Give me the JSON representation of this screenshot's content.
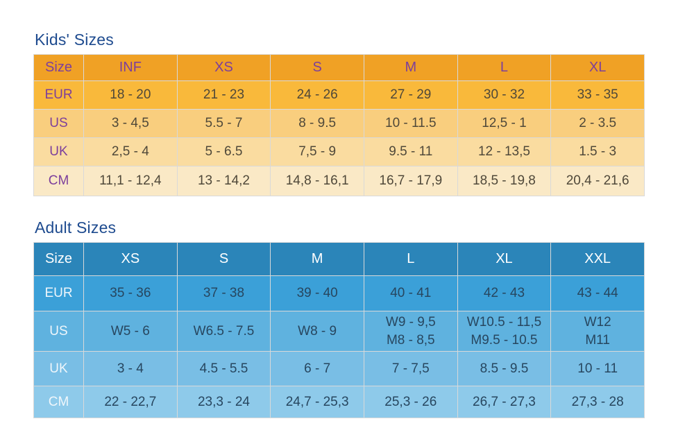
{
  "style": {
    "title_color": "#1e4b8f",
    "grid_line": "#d9d9d9",
    "kids_header_bg": "#f0a125",
    "kids_header_text": "#7c3f9c",
    "kids_label_text": "#7c3f9c",
    "kids_value_text": "#4f4839",
    "kids_row_eur_bg": "#f9b93b",
    "kids_row_us_bg": "#f9ce7e",
    "kids_row_uk_bg": "#fadca0",
    "kids_row_cm_bg": "#fae9c6",
    "adult_header_bg": "#2b85b9",
    "adult_header_text": "#ffffff",
    "adult_label_text": "#eff6fb",
    "adult_value_text": "#27465f",
    "adult_row_eur_bg": "#3ba0d8",
    "adult_row_us_bg": "#5fb2df",
    "adult_row_uk_bg": "#79bee5",
    "adult_row_cm_bg": "#8ecaea"
  },
  "chart_data": [
    {
      "type": "table",
      "title": "Kids' Sizes",
      "columns": [
        "Size",
        "INF",
        "XS",
        "S",
        "M",
        "L",
        "XL"
      ],
      "rows": [
        {
          "label": "EUR",
          "values": [
            "18 - 20",
            "21 - 23",
            "24 - 26",
            "27 - 29",
            "30 - 32",
            "33 - 35"
          ]
        },
        {
          "label": "US",
          "values": [
            "3 - 4,5",
            "5.5 - 7",
            "8 - 9.5",
            "10 - 11.5",
            "12,5 - 1",
            "2 - 3.5"
          ]
        },
        {
          "label": "UK",
          "values": [
            "2,5 - 4",
            "5 - 6.5",
            "7,5 - 9",
            "9.5 - 11",
            "12 - 13,5",
            "1.5 - 3"
          ]
        },
        {
          "label": "CM",
          "values": [
            "11,1 - 12,4",
            "13 - 14,2",
            "14,8 - 16,1",
            "16,7 - 17,9",
            "18,5 - 19,8",
            "20,4 - 21,6"
          ]
        }
      ]
    },
    {
      "type": "table",
      "title": "Adult Sizes",
      "columns": [
        "Size",
        "XS",
        "S",
        "M",
        "L",
        "XL",
        "XXL"
      ],
      "rows": [
        {
          "label": "EUR",
          "values": [
            "35 - 36",
            "37 - 38",
            "39 - 40",
            "40 - 41",
            "42 - 43",
            "43 - 44"
          ]
        },
        {
          "label": "US",
          "values": [
            "W5 - 6",
            "W6.5 - 7.5",
            "W8 - 9",
            "W9 - 9,5\nM8 - 8,5",
            "W10.5 - 11,5\nM9.5 - 10.5",
            "W12\nM11"
          ]
        },
        {
          "label": "UK",
          "values": [
            "3 - 4",
            "4.5 - 5.5",
            "6 - 7",
            "7 - 7,5",
            "8.5 - 9.5",
            "10 - 11"
          ]
        },
        {
          "label": "CM",
          "values": [
            "22 - 22,7",
            "23,3 - 24",
            "24,7 - 25,3",
            "25,3 - 26",
            "26,7 - 27,3",
            "27,3 - 28"
          ]
        }
      ]
    }
  ]
}
